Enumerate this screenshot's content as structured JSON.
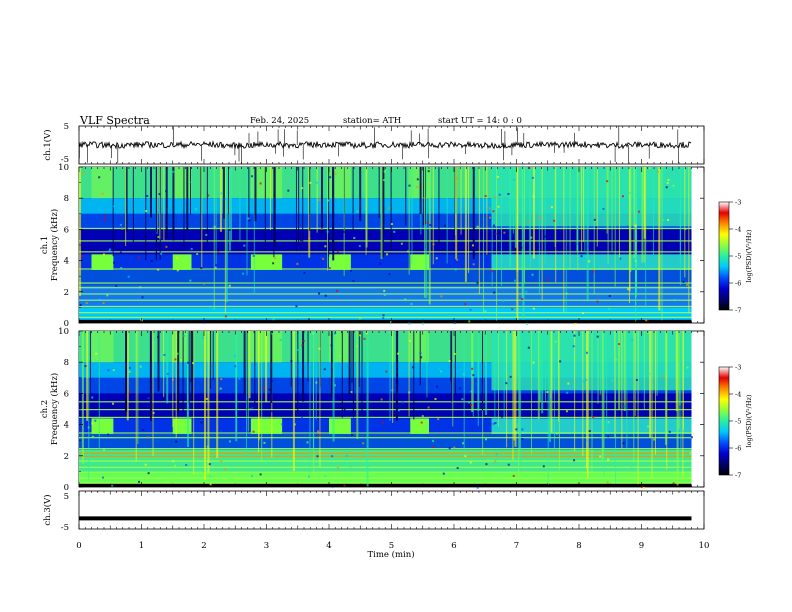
{
  "header": {
    "title": "VLF  Spectra",
    "date": "Feb. 24, 2025",
    "station": "station= ATH",
    "start": "start  UT  =    14: 0   : 0"
  },
  "colors": {
    "colormap": [
      "#000000",
      "#00006e",
      "#0000d2",
      "#0050ff",
      "#00c8ff",
      "#28f0a0",
      "#8cff3c",
      "#ffff00",
      "#ff8c00",
      "#e60000",
      "#ffffff"
    ]
  },
  "chart_data": [
    {
      "type": "line",
      "panel": "ch1-waveform",
      "ylabel": "ch.1(V)",
      "yticks": [
        "5",
        "-5"
      ],
      "ylim": [
        -5,
        5
      ],
      "x": [
        0,
        0.5,
        1,
        1.5,
        2,
        2.5,
        3,
        3.5,
        4,
        4.5,
        5,
        5.5,
        6,
        6.5,
        7,
        7.5,
        8,
        8.5,
        9,
        9.5,
        9.8
      ],
      "values": [
        0.2,
        -0.1,
        0.1,
        0,
        0.2,
        -0.2,
        0.1,
        0,
        0.2,
        -0.1,
        0.1,
        0,
        0.1,
        -0.2,
        0.1,
        0,
        0.2,
        -0.1,
        0.1,
        0,
        0.1
      ]
    },
    {
      "type": "heatmap",
      "panel": "ch1-spectrogram",
      "ylabel_top": "ch.1",
      "ylabel": "Frequency  (kHz)",
      "yticks": [
        "0",
        "2",
        "4",
        "6",
        "8",
        "10"
      ],
      "ylim": [
        0,
        10
      ],
      "xlim": [
        0,
        10
      ],
      "data_extent_min": 9.8,
      "bursts_min": [
        [
          0.2,
          0.55
        ],
        [
          1.5,
          1.8
        ],
        [
          2.75,
          3.25
        ],
        [
          4.0,
          4.35
        ],
        [
          5.3,
          5.6
        ]
      ],
      "band_khz": [
        3.4,
        4.4
      ],
      "colorbar": {
        "label": "log(PSD)(V²/Hz)",
        "ticks": [
          "-3",
          "-4",
          "-5",
          "-6",
          "-7"
        ],
        "range": [
          -7,
          -3
        ]
      }
    },
    {
      "type": "heatmap",
      "panel": "ch2-spectrogram",
      "ylabel_top": "ch.2",
      "ylabel": "Frequency  (kHz)",
      "yticks": [
        "0",
        "2",
        "4",
        "6",
        "8",
        "10"
      ],
      "ylim": [
        0,
        10
      ],
      "xlim": [
        0,
        10
      ],
      "data_extent_min": 9.8,
      "bursts_min": [
        [
          0.2,
          0.55
        ],
        [
          1.5,
          1.8
        ],
        [
          2.75,
          3.25
        ],
        [
          4.0,
          4.35
        ],
        [
          5.3,
          5.6
        ]
      ],
      "band_khz": [
        3.4,
        4.4
      ],
      "colorbar": {
        "label": "log(PSD)(V²/Hz)",
        "ticks": [
          "-3",
          "-4",
          "-5",
          "-6",
          "-7"
        ],
        "range": [
          -7,
          -3
        ]
      }
    },
    {
      "type": "line",
      "panel": "ch3-waveform",
      "ylabel": "ch.3(V)",
      "yticks": [
        "5",
        "-5"
      ],
      "ylim": [
        -5,
        5
      ],
      "x": [
        0,
        9.8
      ],
      "values": [
        -2.2,
        -2.2
      ]
    }
  ],
  "xaxis": {
    "label": "Time  (min)",
    "ticks": [
      "0",
      "1",
      "2",
      "3",
      "4",
      "5",
      "6",
      "7",
      "8",
      "9",
      "10"
    ],
    "xlim": [
      0,
      10
    ]
  }
}
